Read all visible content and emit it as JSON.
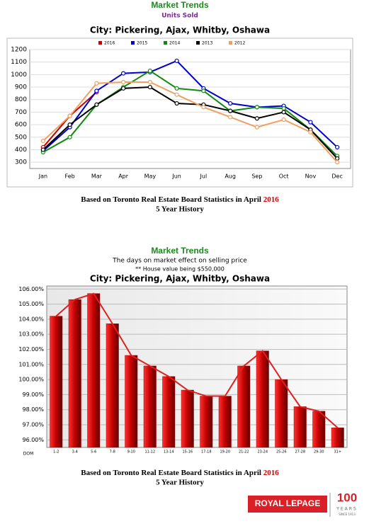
{
  "chart_data": [
    {
      "type": "line",
      "title": "Market Trends",
      "subtitle": "Units Sold",
      "city": "City: Pickering, Ajax, Whitby, Oshawa",
      "categories": [
        "Jan",
        "Feb",
        "Mar",
        "Apr",
        "May",
        "Jun",
        "Jul",
        "Aug",
        "Sep",
        "Oct",
        "Nov",
        "Dec"
      ],
      "series": [
        {
          "name": "2016",
          "color": "#cc0000",
          "values": [
            420,
            670,
            860,
            null,
            null,
            null,
            null,
            null,
            null,
            null,
            null,
            null
          ]
        },
        {
          "name": "2015",
          "color": "#0000cc",
          "values": [
            390,
            580,
            870,
            1010,
            1020,
            1110,
            890,
            770,
            740,
            750,
            620,
            420
          ]
        },
        {
          "name": "2014",
          "color": "#108a10",
          "values": [
            380,
            500,
            760,
            900,
            1030,
            890,
            870,
            710,
            740,
            730,
            560,
            350
          ]
        },
        {
          "name": "2013",
          "color": "#000000",
          "values": [
            400,
            600,
            760,
            890,
            900,
            770,
            760,
            710,
            650,
            700,
            560,
            330
          ]
        },
        {
          "name": "2012",
          "color": "#f0a060",
          "values": [
            470,
            670,
            930,
            940,
            940,
            840,
            740,
            660,
            580,
            640,
            540,
            300
          ]
        }
      ],
      "ylim": [
        250,
        1200
      ],
      "yticks": [
        300,
        400,
        500,
        600,
        700,
        800,
        900,
        1000,
        1100,
        1200
      ],
      "grid": true
    },
    {
      "type": "bar",
      "title": "Market Trends",
      "subtitle": "The days on market effect on selling price",
      "note": "** House value being $550,000",
      "city": "City: Pickering, Ajax, Whitby, Oshawa",
      "x_label": "DOM",
      "categories": [
        "1-2",
        "3-4",
        "5-6",
        "7-8",
        "9-10",
        "11-12",
        "13-14",
        "15-16",
        "17-18",
        "19-20",
        "21-22",
        "23-24",
        "25-26",
        "27-28",
        "29-30",
        "31+"
      ],
      "values": [
        104.2,
        105.3,
        105.7,
        103.7,
        101.6,
        100.9,
        100.2,
        99.3,
        98.9,
        98.9,
        100.9,
        101.9,
        100.0,
        98.2,
        97.9,
        96.8
      ],
      "color": "#b00000",
      "line_color": "#e02020",
      "ylim": [
        95.5,
        106.2
      ],
      "yticks": [
        {
          "value": 96,
          "label": "96.00%"
        },
        {
          "value": 97,
          "label": "97.00%"
        },
        {
          "value": 98,
          "label": "98.00%"
        },
        {
          "value": 99,
          "label": "99.00%"
        },
        {
          "value": 100,
          "label": "100.00%"
        },
        {
          "value": 101,
          "label": "101.00%"
        },
        {
          "value": 102,
          "label": "102.00%"
        },
        {
          "value": 103,
          "label": "103.00%"
        },
        {
          "value": 104,
          "label": "104.00%"
        },
        {
          "value": 105,
          "label": "105.00%"
        },
        {
          "value": 106,
          "label": "106.00%"
        }
      ],
      "grid": true
    }
  ],
  "captions": [
    {
      "text": "Based on Toronto Real Estate Board Statistics in April",
      "year": "2016",
      "line2": "5 Year History"
    },
    {
      "text": "Based on Toronto Real Estate Board Statistics in April",
      "year": "2016",
      "line2": "5 Year History"
    }
  ],
  "logo": {
    "brand": "ROYAL LEPAGE",
    "number": "100",
    "years": "YEARS",
    "since": "SINCE 1913"
  }
}
